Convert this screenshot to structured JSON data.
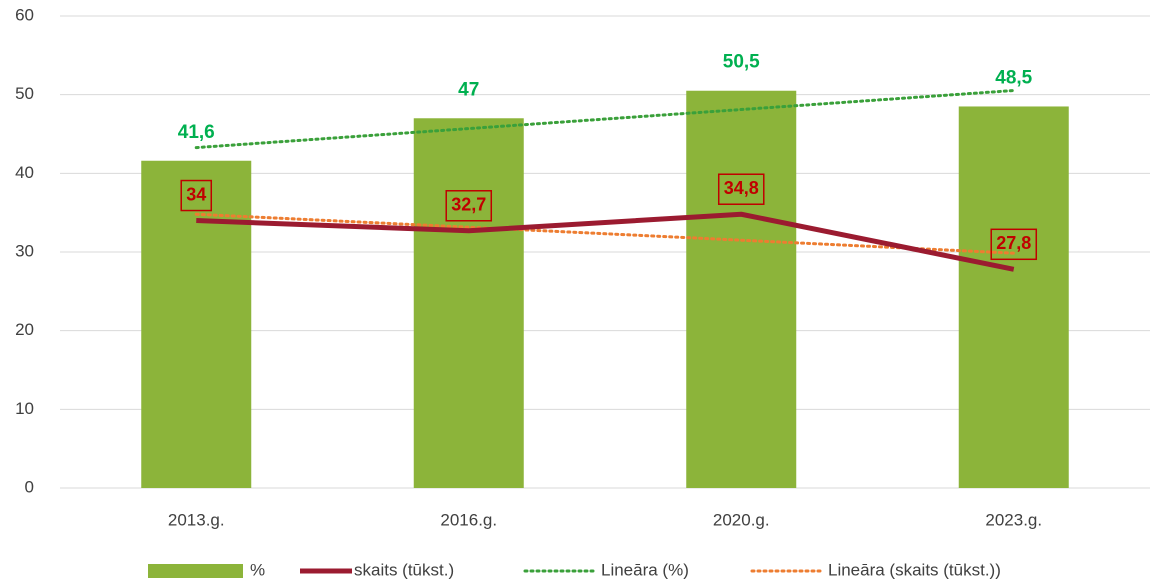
{
  "chart_data": {
    "type": "bar_line",
    "categories": [
      "2013.g.",
      "2016.g.",
      "2020.g.",
      "2023.g."
    ],
    "series": [
      {
        "name": "%",
        "type": "bar",
        "color": "#8cb43a",
        "label_color": "#00b050",
        "values": [
          41.6,
          47,
          50.5,
          48.5
        ],
        "value_labels": [
          "41,6",
          "47",
          "50,5",
          "48,5"
        ]
      },
      {
        "name": "skaits (tūkst.)",
        "type": "line",
        "color": "#9b1b30",
        "label_color": "#c00000",
        "values": [
          34,
          32.7,
          34.8,
          27.8
        ],
        "value_labels": [
          "34",
          "32,7",
          "34,8",
          "27,8"
        ]
      }
    ],
    "trendlines": [
      {
        "name": "Lineāra (%)",
        "type": "linear",
        "series": 0,
        "color": "#3aa03a"
      },
      {
        "name": "Lineāra (skaits (tūkst.))",
        "type": "linear",
        "series": 1,
        "color": "#ed7d31"
      }
    ],
    "ylim": [
      0,
      60
    ],
    "yticks": [
      0,
      10,
      20,
      30,
      40,
      50,
      60
    ],
    "grid": true,
    "legend": "bottom"
  }
}
